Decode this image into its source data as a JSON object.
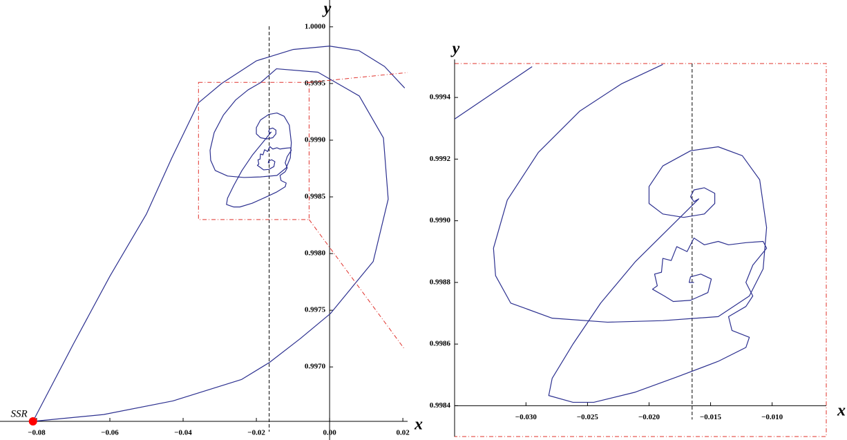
{
  "chart_data": [
    {
      "type": "line",
      "xlabel": "x",
      "ylabel": "y",
      "annotation": "SSR",
      "color": "#2b2f8f",
      "point_color": "#ff0000",
      "vline": -0.0165,
      "xlim": [
        -0.09,
        0.0213
      ],
      "ylim": [
        0.99652,
        1.0002
      ],
      "axes_origin": [
        0,
        0.99652
      ],
      "xticks": [
        {
          "value": -0.08,
          "label": "−0.08"
        },
        {
          "value": -0.06,
          "label": "−0.06"
        },
        {
          "value": -0.04,
          "label": "−0.04"
        },
        {
          "value": -0.02,
          "label": "−0.02"
        },
        {
          "value": 0,
          "label": "0.00"
        },
        {
          "value": 0.02,
          "label": "0.02"
        }
      ],
      "yticks": [
        {
          "value": 0.997,
          "label": "0.9970"
        },
        0.9975,
        {
          "value": 0.998,
          "label": "0.9980"
        },
        0.9985,
        {
          "value": 0.999,
          "label": "0.9990"
        },
        0.9995,
        {
          "value": 1.0,
          "label": "1.0000"
        }
      ],
      "x": [
        -0.081,
        -0.07,
        -0.06,
        -0.05,
        -0.043,
        -0.0358,
        -0.0295,
        -0.02,
        -0.01,
        0.0,
        0.008,
        0.015,
        0.0205,
        null,
        -0.081,
        -0.0617,
        -0.0428,
        -0.024,
        -0.0164,
        -0.008,
        0.0002,
        0.0119,
        0.016,
        0.0147,
        0.0081,
        -0.0032,
        -0.0145,
        -0.01888,
        -0.02225,
        -0.02562,
        -0.02899,
        -0.03152,
        -0.03264,
        -0.03247,
        -0.03124,
        -0.02787,
        -0.02337,
        -0.01888,
        -0.01438,
        -0.01185,
        -0.01073,
        -0.01045,
        -0.01101,
        -0.01242,
        -0.01438,
        -0.01663,
        -0.01888,
        -0.02,
        -0.02,
        -0.01888,
        -0.01719,
        -0.01551,
        -0.01466,
        -0.01466,
        -0.01551,
        -0.01635,
        -0.01663,
        -0.01635,
        -0.01596,
        -0.02112,
        -0.02393,
        -0.02618,
        -0.02787,
        -0.02815,
        -0.02618,
        -0.02449,
        -0.02112,
        -0.01775,
        -0.01438,
        -0.01213,
        -0.01185,
        -0.01326,
        -0.01354,
        -0.01213,
        -0.01157,
        -0.01213,
        -0.01157,
        -0.01045,
        -0.01073,
        -0.01213,
        -0.01354,
        -0.01438,
        -0.01551,
        -0.01635,
        -0.01691,
        -0.01775,
        -0.0182,
        -0.01888,
        -0.01899,
        -0.01955,
        -0.01933,
        -0.01972,
        -0.01876,
        -0.01803,
        -0.01663,
        -0.01522,
        -0.01494,
        -0.01579,
        -0.01663,
        -0.01674,
        -0.01635
      ],
      "values": [
        0.99652,
        0.9972,
        0.9978,
        0.99835,
        0.99885,
        0.99933,
        0.9995,
        0.9997,
        0.9998,
        0.99983,
        0.99979,
        0.99965,
        0.99946,
        null,
        0.99652,
        0.99658,
        0.9967,
        0.99689,
        0.99704,
        0.99725,
        0.99747,
        0.99793,
        0.99848,
        0.99902,
        0.99939,
        0.9996,
        0.99963,
        0.999507,
        0.999444,
        0.999356,
        0.999222,
        0.999067,
        0.998911,
        0.998822,
        0.998733,
        0.998684,
        0.998671,
        0.998676,
        0.998689,
        0.998756,
        0.998844,
        0.998978,
        0.999133,
        0.999211,
        0.99924,
        0.999227,
        0.999178,
        0.999111,
        0.999056,
        0.999022,
        0.999011,
        0.999022,
        0.999056,
        0.999089,
        0.999107,
        0.9991,
        0.999078,
        0.999062,
        0.999071,
        0.998867,
        0.998733,
        0.9986,
        0.998489,
        0.998433,
        0.998411,
        0.998411,
        0.998444,
        0.998493,
        0.998544,
        0.998589,
        0.998622,
        0.998644,
        0.998689,
        0.998722,
        0.998756,
        0.9988,
        0.998856,
        0.998911,
        0.998933,
        0.998929,
        0.998922,
        0.998933,
        0.998922,
        0.998944,
        0.9989,
        0.998916,
        0.998871,
        0.998878,
        0.998833,
        0.998827,
        0.998789,
        0.998778,
        0.998756,
        0.998738,
        0.998742,
        0.998767,
        0.998811,
        0.998827,
        0.998818,
        0.9988,
        0.9988
      ]
    },
    {
      "type": "line",
      "xlabel": "x",
      "ylabel": "y",
      "color": "#2b2f8f",
      "box_color": "#e0302a",
      "vline": -0.0165,
      "xlim": [
        -0.0358,
        -0.0056
      ],
      "ylim": [
        0.9983,
        0.99951
      ],
      "axes_origin": [
        -0.0358,
        0.9984
      ],
      "xticks": [
        {
          "value": -0.03,
          "label": "−0.030"
        },
        {
          "value": -0.025,
          "label": "−0.025"
        },
        {
          "value": -0.02,
          "label": "−0.020"
        },
        {
          "value": -0.015,
          "label": "−0.015"
        },
        {
          "value": -0.01,
          "label": "−0.010"
        }
      ],
      "yticks": [
        0.9984,
        0.9986,
        0.9988,
        {
          "value": 0.999,
          "label": "0.9990"
        },
        0.9992,
        0.9994
      ],
      "x": [
        -0.0358,
        -0.0295,
        null,
        -0.01888,
        -0.02225,
        -0.02562,
        -0.02899,
        -0.03152,
        -0.03264,
        -0.03247,
        -0.03124,
        -0.02787,
        -0.02337,
        -0.01888,
        -0.01438,
        -0.01185,
        -0.01073,
        -0.01045,
        -0.01101,
        -0.01242,
        -0.01438,
        -0.01663,
        -0.01888,
        -0.02,
        -0.02,
        -0.01888,
        -0.01719,
        -0.01551,
        -0.01466,
        -0.01466,
        -0.01551,
        -0.01635,
        -0.01663,
        -0.01635,
        -0.01596,
        -0.02112,
        -0.02393,
        -0.02618,
        -0.02787,
        -0.02815,
        -0.02618,
        -0.02449,
        -0.02112,
        -0.01775,
        -0.01438,
        -0.01213,
        -0.01185,
        -0.01326,
        -0.01354,
        -0.01213,
        -0.01157,
        -0.01213,
        -0.01157,
        -0.01045,
        -0.01073,
        -0.01213,
        -0.01354,
        -0.01438,
        -0.01551,
        -0.01635,
        -0.01691,
        -0.01775,
        -0.0182,
        -0.01888,
        -0.01899,
        -0.01955,
        -0.01933,
        -0.01972,
        -0.01876,
        -0.01803,
        -0.01663,
        -0.01522,
        -0.01494,
        -0.01579,
        -0.01663,
        -0.01674,
        -0.01635
      ],
      "values": [
        0.99933,
        0.9995,
        null,
        0.999507,
        0.999444,
        0.999356,
        0.999222,
        0.999067,
        0.998911,
        0.998822,
        0.998733,
        0.998684,
        0.998671,
        0.998676,
        0.998689,
        0.998756,
        0.998844,
        0.998978,
        0.999133,
        0.999211,
        0.99924,
        0.999227,
        0.999178,
        0.999111,
        0.999056,
        0.999022,
        0.999011,
        0.999022,
        0.999056,
        0.999089,
        0.999107,
        0.9991,
        0.999078,
        0.999062,
        0.999071,
        0.998867,
        0.998733,
        0.9986,
        0.998489,
        0.998433,
        0.998411,
        0.998411,
        0.998444,
        0.998493,
        0.998544,
        0.998589,
        0.998622,
        0.998644,
        0.998689,
        0.998722,
        0.998756,
        0.9988,
        0.998856,
        0.998911,
        0.998933,
        0.998929,
        0.998922,
        0.998933,
        0.998922,
        0.998944,
        0.9989,
        0.998916,
        0.998871,
        0.998878,
        0.998833,
        0.998827,
        0.998789,
        0.998778,
        0.998756,
        0.998738,
        0.998742,
        0.998767,
        0.998811,
        0.998827,
        0.998818,
        0.9988,
        0.9988
      ]
    }
  ]
}
